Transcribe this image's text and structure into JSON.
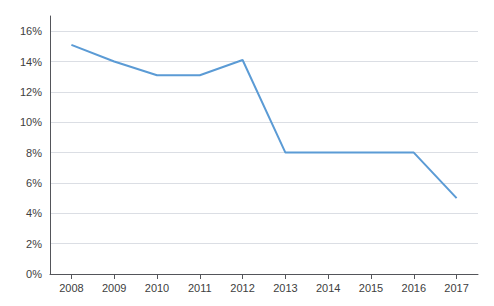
{
  "chart_data": {
    "type": "line",
    "x": [
      2008,
      2009,
      2010,
      2011,
      2012,
      2013,
      2014,
      2015,
      2016,
      2017
    ],
    "values": [
      0.151,
      0.14,
      0.131,
      0.131,
      0.141,
      0.08,
      0.08,
      0.08,
      0.08,
      0.05
    ],
    "color": "#5b9bd5",
    "xlim": [
      2007.5,
      2017.5
    ],
    "xticks": [
      2008,
      2009,
      2010,
      2011,
      2012,
      2013,
      2014,
      2015,
      2016,
      2017
    ],
    "ylim": [
      0,
      0.17
    ],
    "yticks": [
      {
        "value": 0,
        "label": "0%"
      },
      {
        "value": 0.02,
        "label": "2%"
      },
      {
        "value": 0.04,
        "label": "4%"
      },
      {
        "value": 0.06,
        "label": "6%"
      },
      {
        "value": 0.08,
        "label": "8%"
      },
      {
        "value": 0.1,
        "label": "10%"
      },
      {
        "value": 0.12,
        "label": "12%"
      },
      {
        "value": 0.14,
        "label": "14%"
      },
      {
        "value": 0.16,
        "label": "16%"
      }
    ],
    "grid": true
  }
}
